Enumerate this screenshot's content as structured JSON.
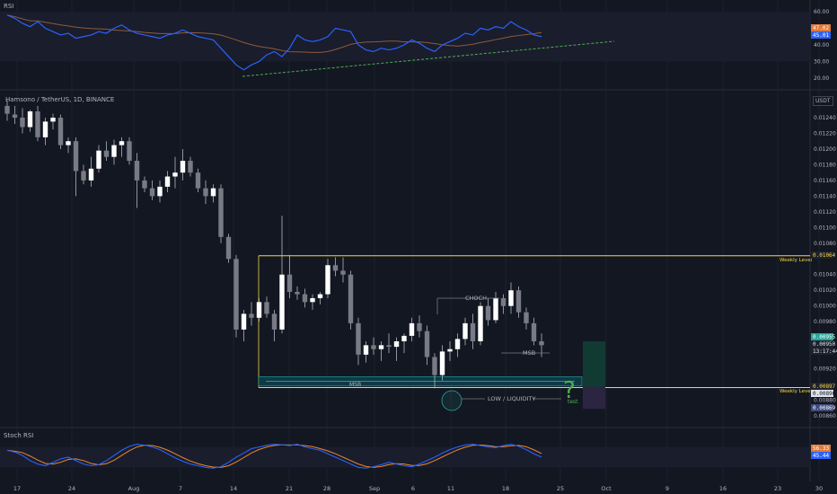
{
  "symbol_line": "Hamsono / TetherUS, 1D, BINANCE",
  "currency": "USDT",
  "colors": {
    "bg": "#131722",
    "grid": "#1e222d",
    "axis_text": "#b2b5be",
    "candle_up": "#ffffff",
    "candle_down": "#787b86",
    "wick": "#b2b5be",
    "rsi_line": "#2962ff",
    "rsi_ma": "#8d5b3b",
    "rsi_trend": "#4caf50",
    "level_line": "#f5d742",
    "level_text": "#f5d742",
    "zone_fill": "#0e3a46",
    "zone_edge": "#26a69a",
    "stoch_k": "#2962ff",
    "stoch_d": "#e9892c",
    "green_text": "#4caf50",
    "long_fill": "#113b32",
    "short_fill": "#2b2542"
  },
  "rsi_pane": {
    "title": "RSI",
    "axis_ticks": [
      "60.00",
      "50.00",
      "40.00",
      "30.00",
      "20.00"
    ],
    "badge_ma": "47.02",
    "badge_rsi": "45.01"
  },
  "price_pane": {
    "axis_ticks": [
      "0.01240",
      "0.01220",
      "0.01200",
      "0.01180",
      "0.01160",
      "0.01140",
      "0.01120",
      "0.01100",
      "0.01080",
      "0.01040",
      "0.01020",
      "0.01000",
      "0.00980",
      "0.00920",
      "0.00880",
      "0.00860"
    ],
    "price_badges": [
      "0.00955",
      "0.00950",
      "13:17:44"
    ],
    "upper_level_value": "0.01064",
    "lower_level_values": [
      "0.00897",
      "0.00896"
    ],
    "blue_badge": "0.00869",
    "weekly_level_label": "Weekly Level",
    "annotations": {
      "choch": "CHOCH",
      "msb_small": "MSB",
      "msb_zone": "MSB",
      "low_liquidity": "LOW / LIQUIDITY",
      "test": "test",
      "question": "?"
    }
  },
  "stoch_pane": {
    "title": "Stoch RSI",
    "badge_d": "56.33",
    "badge_k": "45.44"
  },
  "time_axis": [
    "17",
    "24",
    "Aug",
    "7",
    "14",
    "21",
    "28",
    "Sep",
    "6",
    "11",
    "18",
    "25",
    "Oct",
    "9",
    "16",
    "23",
    "30"
  ],
  "chart_data": {
    "type": "candlestick",
    "title": "Hamsono / TetherUS, 1D, BINANCE",
    "y_unit": "USDT",
    "ylim": [
      0.0085,
      0.0126
    ],
    "candles": [
      [
        0.01255,
        0.01262,
        0.01236,
        0.01245
      ],
      [
        0.01244,
        0.01255,
        0.01232,
        0.0124
      ],
      [
        0.0124,
        0.01252,
        0.0122,
        0.01228
      ],
      [
        0.01228,
        0.0125,
        0.01222,
        0.01248
      ],
      [
        0.01248,
        0.01255,
        0.0121,
        0.01215
      ],
      [
        0.01215,
        0.0124,
        0.01205,
        0.01235
      ],
      [
        0.01235,
        0.01245,
        0.01225,
        0.0124
      ],
      [
        0.0124,
        0.01244,
        0.012,
        0.01205
      ],
      [
        0.01205,
        0.01215,
        0.01195,
        0.0121
      ],
      [
        0.0121,
        0.01215,
        0.0114,
        0.01172
      ],
      [
        0.01172,
        0.0118,
        0.01155,
        0.0116
      ],
      [
        0.0116,
        0.0119,
        0.01152,
        0.01175
      ],
      [
        0.01175,
        0.01205,
        0.0117,
        0.01198
      ],
      [
        0.01198,
        0.0121,
        0.01185,
        0.0119
      ],
      [
        0.0119,
        0.01212,
        0.0118,
        0.01205
      ],
      [
        0.01205,
        0.01215,
        0.0119,
        0.0121
      ],
      [
        0.0121,
        0.01215,
        0.0118,
        0.01185
      ],
      [
        0.01185,
        0.01195,
        0.01125,
        0.0116
      ],
      [
        0.0116,
        0.01165,
        0.01145,
        0.0115
      ],
      [
        0.0115,
        0.0116,
        0.01135,
        0.0114
      ],
      [
        0.0114,
        0.0116,
        0.01132,
        0.01152
      ],
      [
        0.01152,
        0.01172,
        0.01145,
        0.01165
      ],
      [
        0.01165,
        0.0119,
        0.0115,
        0.0117
      ],
      [
        0.0117,
        0.012,
        0.0116,
        0.01185
      ],
      [
        0.01185,
        0.0119,
        0.01165,
        0.0117
      ],
      [
        0.0117,
        0.01175,
        0.01145,
        0.0115
      ],
      [
        0.0115,
        0.0116,
        0.0113,
        0.0114
      ],
      [
        0.0114,
        0.01155,
        0.01132,
        0.0115
      ],
      [
        0.0115,
        0.01155,
        0.0108,
        0.01088
      ],
      [
        0.01088,
        0.01092,
        0.01055,
        0.0106
      ],
      [
        0.0106,
        0.01065,
        0.0096,
        0.0097
      ],
      [
        0.0097,
        0.00995,
        0.00955,
        0.0099
      ],
      [
        0.0099,
        0.01005,
        0.00975,
        0.00985
      ],
      [
        0.00985,
        0.0101,
        0.0098,
        0.01005
      ],
      [
        0.01005,
        0.01012,
        0.00985,
        0.0099
      ],
      [
        0.0099,
        0.00995,
        0.00955,
        0.0097
      ],
      [
        0.0097,
        0.01115,
        0.00965,
        0.0104
      ],
      [
        0.0104,
        0.01065,
        0.0101,
        0.01018
      ],
      [
        0.01018,
        0.01025,
        0.01008,
        0.01015
      ],
      [
        0.01015,
        0.01022,
        0.00998,
        0.01005
      ],
      [
        0.01005,
        0.01015,
        0.00995,
        0.0101
      ],
      [
        0.0101,
        0.01018,
        0.01002,
        0.01015
      ],
      [
        0.01015,
        0.0106,
        0.0101,
        0.01052
      ],
      [
        0.01052,
        0.01062,
        0.01038,
        0.01045
      ],
      [
        0.01045,
        0.01062,
        0.0103,
        0.0104
      ],
      [
        0.0104,
        0.01045,
        0.0097,
        0.00978
      ],
      [
        0.00978,
        0.00985,
        0.00925,
        0.00938
      ],
      [
        0.00938,
        0.00955,
        0.00928,
        0.0095
      ],
      [
        0.0095,
        0.0096,
        0.00938,
        0.00945
      ],
      [
        0.00945,
        0.00955,
        0.0093,
        0.0095
      ],
      [
        0.0095,
        0.00965,
        0.0094,
        0.00948
      ],
      [
        0.00948,
        0.0096,
        0.0093,
        0.00955
      ],
      [
        0.00955,
        0.00965,
        0.0094,
        0.00962
      ],
      [
        0.00962,
        0.00985,
        0.00955,
        0.00978
      ],
      [
        0.00978,
        0.00988,
        0.0096,
        0.00968
      ],
      [
        0.00968,
        0.00975,
        0.00925,
        0.00935
      ],
      [
        0.00935,
        0.0094,
        0.00895,
        0.00912
      ],
      [
        0.00912,
        0.0095,
        0.00905,
        0.00942
      ],
      [
        0.00942,
        0.00955,
        0.0093,
        0.00945
      ],
      [
        0.00945,
        0.00965,
        0.00935,
        0.00958
      ],
      [
        0.00958,
        0.00985,
        0.0095,
        0.00978
      ],
      [
        0.00978,
        0.0099,
        0.00945,
        0.00955
      ],
      [
        0.00955,
        0.01005,
        0.0095,
        0.01
      ],
      [
        0.01,
        0.0101,
        0.00975,
        0.00982
      ],
      [
        0.00982,
        0.01018,
        0.00978,
        0.0101
      ],
      [
        0.0101,
        0.01015,
        0.0099,
        0.01
      ],
      [
        0.01,
        0.0103,
        0.0099,
        0.0102
      ],
      [
        0.0102,
        0.01025,
        0.00985,
        0.00992
      ],
      [
        0.00992,
        0.00998,
        0.0097,
        0.00978
      ],
      [
        0.00978,
        0.00985,
        0.0095,
        0.00955
      ],
      [
        0.00955,
        0.00965,
        0.00935,
        0.0095
      ]
    ],
    "annotations": [
      "CHOCH",
      "MSB",
      "LOW / LIQUIDITY",
      "test",
      "Weekly Level"
    ],
    "rsi": [
      58,
      56,
      53,
      51,
      54,
      50,
      48,
      46,
      47,
      44,
      45,
      46,
      48,
      47,
      50,
      52,
      49,
      47,
      46,
      45,
      44,
      46,
      47,
      49,
      47,
      45,
      44,
      43,
      38,
      33,
      28,
      25,
      28,
      30,
      34,
      36,
      33,
      38,
      46,
      43,
      42,
      43,
      45,
      50,
      49,
      48,
      40,
      37,
      36,
      38,
      37,
      38,
      40,
      43,
      41,
      38,
      36,
      40,
      42,
      44,
      47,
      46,
      50,
      49,
      51,
      50,
      54,
      51,
      49,
      46,
      45
    ],
    "stoch_k": [
      70,
      65,
      55,
      40,
      30,
      25,
      35,
      45,
      50,
      40,
      30,
      25,
      28,
      40,
      55,
      70,
      82,
      88,
      85,
      80,
      72,
      60,
      48,
      38,
      30,
      25,
      20,
      18,
      22,
      35,
      50,
      62,
      75,
      80,
      85,
      88,
      86,
      84,
      88,
      80,
      75,
      70,
      60,
      50,
      40,
      30,
      20,
      18,
      22,
      28,
      35,
      30,
      25,
      22,
      30,
      40,
      50,
      62,
      72,
      80,
      86,
      88,
      84,
      80,
      78,
      84,
      88,
      82,
      72,
      60,
      50
    ]
  }
}
